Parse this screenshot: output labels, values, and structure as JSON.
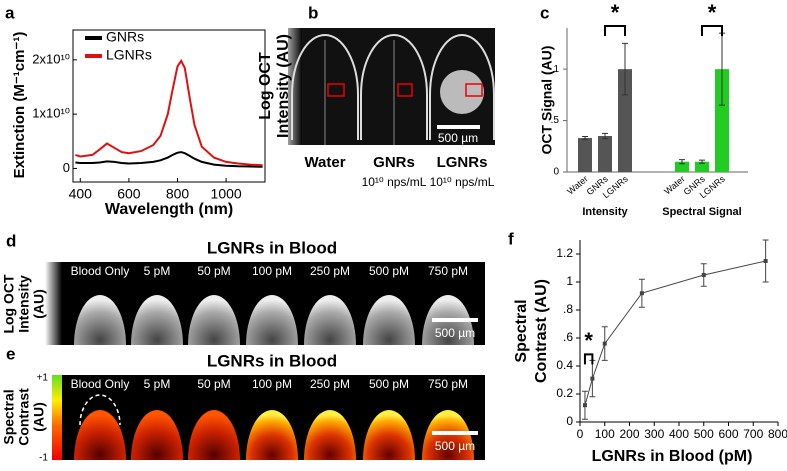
{
  "chart_data": [
    {
      "type": "line",
      "panel": "a",
      "x_label": "Wavelength (nm)",
      "y_label": "Extinction (M⁻¹cm⁻¹)",
      "x": [
        380,
        400,
        450,
        480,
        510,
        540,
        570,
        600,
        650,
        700,
        730,
        760,
        780,
        800,
        815,
        830,
        850,
        870,
        900,
        950,
        1000,
        1050,
        1100,
        1150
      ],
      "series": [
        {
          "name": "GNRs",
          "color": "#000000",
          "values": [
            1100000000,
            1000000000,
            1000000000,
            1100000000,
            1300000000,
            1200000000,
            1000000000,
            900000000,
            1000000000,
            1200000000,
            1500000000,
            2000000000,
            2500000000,
            2900000000,
            3000000000,
            2800000000,
            2300000000,
            1800000000,
            1200000000,
            700000000,
            500000000,
            400000000,
            350000000,
            300000000
          ]
        },
        {
          "name": "LGNRs",
          "color": "#dd1111",
          "values": [
            2500000000,
            2200000000,
            2500000000,
            3500000000,
            4600000000,
            3800000000,
            3000000000,
            2800000000,
            3200000000,
            4300000000,
            6000000000,
            10000000000,
            14500000000,
            18800000000,
            19800000000,
            18500000000,
            13000000000,
            8000000000,
            4000000000,
            2000000000,
            1200000000,
            900000000,
            700000000,
            600000000
          ]
        }
      ],
      "xlim": [
        370,
        1160
      ],
      "xticks": [
        400,
        600,
        800,
        1000
      ],
      "ylim": [
        -2500000000,
        25500000000
      ],
      "yticks": [
        0,
        {
          "value": 10000000000,
          "label": "1x10¹⁰"
        },
        {
          "value": 20000000000,
          "label": "2x10¹⁰"
        }
      ],
      "legend": "upper-left"
    },
    {
      "type": "bar",
      "panel": "c",
      "y_label": "OCT Signal (AU)",
      "categories": [
        "Water",
        "GNRs",
        "LGNRs"
      ],
      "series": [
        {
          "name": "Intensity",
          "color": "#555555",
          "values": [
            0.33,
            0.35,
            1.0
          ],
          "errors": [
            0.015,
            0.025,
            0.25
          ]
        },
        {
          "name": "Spectral Signal",
          "color": "#22cc22",
          "values": [
            0.1,
            0.1,
            1.0
          ],
          "errors": [
            0.02,
            0.015,
            0.35
          ]
        }
      ],
      "annotations": [
        "*",
        "*"
      ],
      "ylim": [
        0,
        1.4
      ],
      "yticks": [
        0,
        {
          "value": 0.5,
          "label": ".5"
        },
        1
      ]
    },
    {
      "type": "line",
      "panel": "f",
      "x_label": "LGNRs in Blood (pM)",
      "y_label": [
        "Spectral",
        "Contrast (AU)"
      ],
      "x": [
        20,
        50,
        100,
        250,
        500,
        750
      ],
      "values": [
        0.12,
        0.31,
        0.56,
        0.92,
        1.05,
        1.15
      ],
      "errors": [
        0.1,
        0.13,
        0.12,
        0.1,
        0.08,
        0.15
      ],
      "color": "#444444",
      "annotations": [
        "*"
      ],
      "xlim": [
        0,
        800
      ],
      "xticks": [
        0,
        100,
        200,
        300,
        400,
        500,
        600,
        700,
        800
      ],
      "ylim": [
        0,
        1.3
      ],
      "yticks": [
        0,
        0.2,
        0.4,
        {
          "value": 0.6,
          "label": ".6"
        },
        {
          "value": 0.8,
          "label": ".8"
        },
        1,
        1.2
      ]
    }
  ],
  "image_panels": {
    "b": {
      "panel": "b",
      "y_label": [
        "Log OCT",
        "Intensity (AU)"
      ],
      "labels": [
        "Water",
        "GNRs",
        "LGNRs"
      ],
      "sublabels": [
        "10¹⁰ nps/mL",
        "10¹⁰ nps/mL"
      ],
      "scale_bar": "500 µm"
    },
    "d": {
      "panel": "d",
      "title": "LGNRs in Blood",
      "y_label": [
        "Log OCT",
        "Intensity",
        "(AU)"
      ],
      "labels": [
        "Blood Only",
        "5 pM",
        "50 pM",
        "100 pM",
        "250 pM",
        "500 pM",
        "750 pM"
      ],
      "scale_bar": "500 µm"
    },
    "e": {
      "panel": "e",
      "title": "LGNRs in Blood",
      "y_label": [
        "Spectral",
        "Contrast",
        "(AU)"
      ],
      "labels": [
        "Blood Only",
        "5 pM",
        "50 pM",
        "100 pM",
        "250 pM",
        "500 pM",
        "750 pM"
      ],
      "colorbar_labels": [
        "+1",
        "-1"
      ],
      "scale_bar": "500 µm"
    }
  }
}
